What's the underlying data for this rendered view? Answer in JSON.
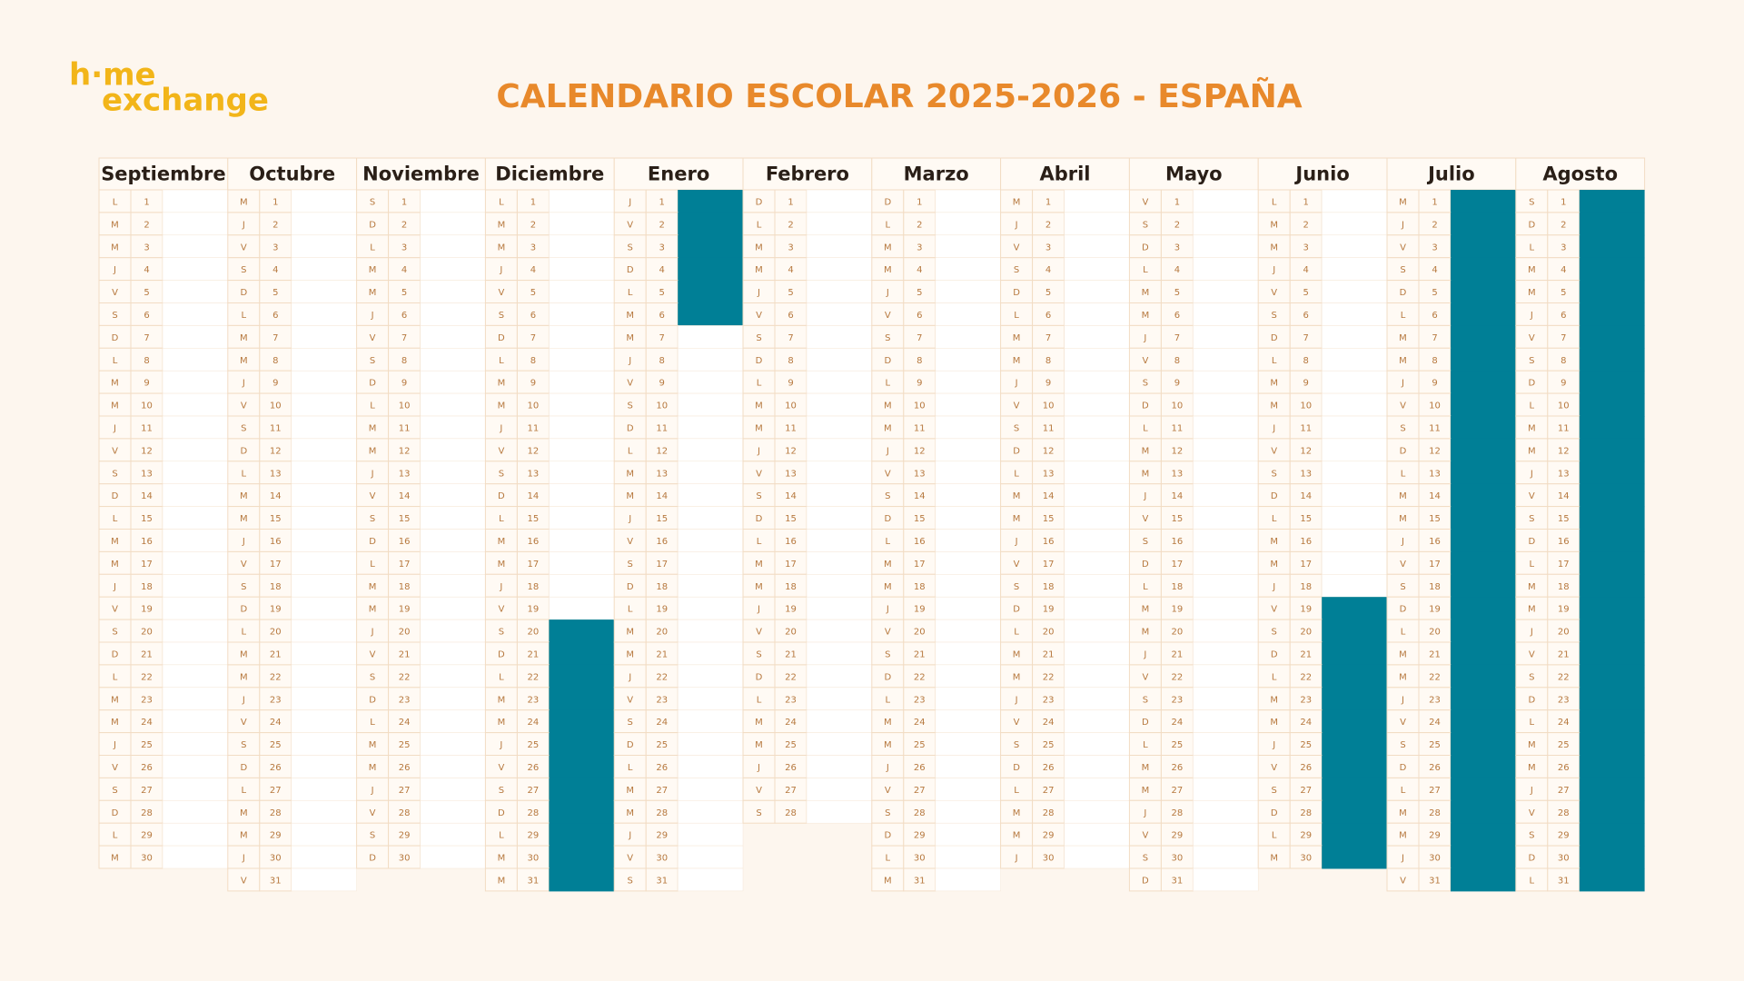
{
  "logo": [
    "h·me",
    "exchange"
  ],
  "title": "CALENDARIO ESCOLAR 2025-2026 - ESPAÑA",
  "months": [
    {
      "name": "Septiembre",
      "weekdays": [
        "L",
        "M",
        "M",
        "J",
        "V",
        "S",
        "D",
        "L",
        "M",
        "M",
        "J",
        "V",
        "S",
        "D",
        "L",
        "M",
        "M",
        "J",
        "V",
        "S",
        "D",
        "L",
        "M",
        "M",
        "J",
        "V",
        "S",
        "D",
        "L",
        "M"
      ],
      "days": [
        1,
        2,
        3,
        4,
        5,
        6,
        7,
        8,
        9,
        10,
        11,
        12,
        13,
        14,
        15,
        16,
        17,
        18,
        19,
        20,
        21,
        22,
        23,
        24,
        25,
        26,
        27,
        28,
        29,
        30
      ]
    },
    {
      "name": "Octubre",
      "weekdays": [
        "M",
        "J",
        "V",
        "S",
        "D",
        "L",
        "M",
        "M",
        "J",
        "V",
        "S",
        "D",
        "L",
        "M",
        "M",
        "J",
        "V",
        "S",
        "D",
        "L",
        "M",
        "M",
        "J",
        "V",
        "S",
        "D",
        "L",
        "M",
        "M",
        "J",
        "V"
      ],
      "days": [
        1,
        2,
        3,
        4,
        5,
        6,
        7,
        8,
        9,
        10,
        11,
        12,
        13,
        14,
        15,
        16,
        17,
        18,
        19,
        20,
        21,
        22,
        23,
        24,
        25,
        26,
        27,
        28,
        29,
        30,
        31
      ]
    },
    {
      "name": "Noviembre",
      "weekdays": [
        "S",
        "D",
        "L",
        "M",
        "M",
        "J",
        "V",
        "S",
        "D",
        "L",
        "M",
        "M",
        "J",
        "V",
        "S",
        "D",
        "L",
        "M",
        "M",
        "J",
        "V",
        "S",
        "D",
        "L",
        "M",
        "M",
        "J",
        "V",
        "S",
        "D"
      ],
      "days": [
        1,
        2,
        3,
        4,
        5,
        6,
        7,
        8,
        9,
        10,
        11,
        12,
        13,
        14,
        15,
        16,
        17,
        18,
        19,
        20,
        21,
        22,
        23,
        24,
        25,
        26,
        27,
        28,
        29,
        30
      ]
    },
    {
      "name": "Diciembre",
      "weekdays": [
        "L",
        "M",
        "M",
        "J",
        "V",
        "S",
        "D",
        "L",
        "M",
        "M",
        "J",
        "V",
        "S",
        "D",
        "L",
        "M",
        "M",
        "J",
        "V",
        "S",
        "D",
        "L",
        "M",
        "M",
        "J",
        "V",
        "S",
        "D",
        "L",
        "M",
        "M"
      ],
      "days": [
        1,
        2,
        3,
        4,
        5,
        6,
        7,
        8,
        9,
        10,
        11,
        12,
        13,
        14,
        15,
        16,
        17,
        18,
        19,
        20,
        21,
        22,
        23,
        24,
        25,
        26,
        27,
        28,
        29,
        30,
        31
      ]
    },
    {
      "name": "Enero",
      "weekdays": [
        "J",
        "V",
        "S",
        "D",
        "L",
        "M",
        "M",
        "J",
        "V",
        "S",
        "D",
        "L",
        "M",
        "M",
        "J",
        "V",
        "S",
        "D",
        "L",
        "M",
        "M",
        "J",
        "V",
        "S",
        "D",
        "L",
        "M",
        "M",
        "J",
        "V",
        "S"
      ],
      "days": [
        1,
        2,
        3,
        4,
        5,
        6,
        7,
        8,
        9,
        10,
        11,
        12,
        13,
        14,
        15,
        16,
        17,
        18,
        19,
        20,
        21,
        22,
        23,
        24,
        25,
        26,
        27,
        28,
        29,
        30,
        31
      ]
    },
    {
      "name": "Febrero",
      "weekdays": [
        "D",
        "L",
        "M",
        "M",
        "J",
        "V",
        "S",
        "D",
        "L",
        "M",
        "M",
        "J",
        "V",
        "S",
        "D",
        "L",
        "M",
        "M",
        "J",
        "V",
        "S",
        "D",
        "L",
        "M",
        "M",
        "J",
        "V",
        "S"
      ],
      "days": [
        1,
        2,
        3,
        4,
        5,
        6,
        7,
        8,
        9,
        10,
        11,
        12,
        13,
        14,
        15,
        16,
        17,
        18,
        19,
        20,
        21,
        22,
        23,
        24,
        25,
        26,
        27,
        28
      ]
    },
    {
      "name": "Marzo",
      "weekdays": [
        "D",
        "L",
        "M",
        "M",
        "J",
        "V",
        "S",
        "D",
        "L",
        "M",
        "M",
        "J",
        "V",
        "S",
        "D",
        "L",
        "M",
        "M",
        "J",
        "V",
        "S",
        "D",
        "L",
        "M",
        "M",
        "J",
        "V",
        "S",
        "D",
        "L",
        "M"
      ],
      "days": [
        1,
        2,
        3,
        4,
        5,
        6,
        7,
        8,
        9,
        10,
        11,
        12,
        13,
        14,
        15,
        16,
        17,
        18,
        19,
        20,
        21,
        22,
        23,
        24,
        25,
        26,
        27,
        28,
        29,
        30,
        31
      ]
    },
    {
      "name": "Abril",
      "weekdays": [
        "M",
        "J",
        "V",
        "S",
        "D",
        "L",
        "M",
        "M",
        "J",
        "V",
        "S",
        "D",
        "L",
        "M",
        "M",
        "J",
        "V",
        "S",
        "D",
        "L",
        "M",
        "M",
        "J",
        "V",
        "S",
        "D",
        "L",
        "M",
        "M",
        "J"
      ],
      "days": [
        1,
        2,
        3,
        4,
        5,
        6,
        7,
        8,
        9,
        10,
        11,
        12,
        13,
        14,
        15,
        16,
        17,
        18,
        19,
        20,
        21,
        22,
        23,
        24,
        25,
        26,
        27,
        28,
        29,
        30
      ]
    },
    {
      "name": "Mayo",
      "weekdays": [
        "V",
        "S",
        "D",
        "L",
        "M",
        "M",
        "J",
        "V",
        "S",
        "D",
        "L",
        "M",
        "M",
        "J",
        "V",
        "S",
        "D",
        "L",
        "M",
        "M",
        "J",
        "V",
        "S",
        "D",
        "L",
        "M",
        "M",
        "J",
        "V",
        "S",
        "D"
      ],
      "days": [
        1,
        2,
        3,
        4,
        5,
        6,
        7,
        8,
        9,
        10,
        11,
        12,
        13,
        14,
        15,
        16,
        17,
        18,
        19,
        20,
        21,
        22,
        23,
        24,
        25,
        26,
        27,
        28,
        29,
        30,
        31
      ]
    },
    {
      "name": "Junio",
      "weekdays": [
        "L",
        "M",
        "M",
        "J",
        "V",
        "S",
        "D",
        "L",
        "M",
        "M",
        "J",
        "V",
        "S",
        "D",
        "L",
        "M",
        "M",
        "J",
        "V",
        "S",
        "D",
        "L",
        "M",
        "M",
        "J",
        "V",
        "S",
        "D",
        "L",
        "M"
      ],
      "days": [
        1,
        2,
        3,
        4,
        5,
        6,
        7,
        8,
        9,
        10,
        11,
        12,
        13,
        14,
        15,
        16,
        17,
        18,
        19,
        20,
        21,
        22,
        23,
        24,
        25,
        26,
        27,
        28,
        29,
        30
      ]
    },
    {
      "name": "Julio",
      "weekdays": [
        "M",
        "J",
        "V",
        "S",
        "D",
        "L",
        "M",
        "M",
        "J",
        "V",
        "S",
        "D",
        "L",
        "M",
        "M",
        "J",
        "V",
        "S",
        "D",
        "L",
        "M",
        "M",
        "J",
        "V",
        "S",
        "D",
        "L",
        "M",
        "M",
        "J",
        "V"
      ],
      "days": [
        1,
        2,
        3,
        4,
        5,
        6,
        7,
        8,
        9,
        10,
        11,
        12,
        13,
        14,
        15,
        16,
        17,
        18,
        19,
        20,
        21,
        22,
        23,
        24,
        25,
        26,
        27,
        28,
        29,
        30,
        31
      ]
    },
    {
      "name": "Agosto",
      "weekdays": [
        "S",
        "D",
        "L",
        "M",
        "M",
        "J",
        "V",
        "S",
        "D",
        "L",
        "M",
        "M",
        "J",
        "V",
        "S",
        "D",
        "L",
        "M",
        "M",
        "J",
        "V",
        "S",
        "D",
        "L",
        "M",
        "M",
        "J",
        "V",
        "S",
        "D",
        "L"
      ],
      "days": [
        1,
        2,
        3,
        4,
        5,
        6,
        7,
        8,
        9,
        10,
        11,
        12,
        13,
        14,
        15,
        16,
        17,
        18,
        19,
        20,
        21,
        22,
        23,
        24,
        25,
        26,
        27,
        28,
        29,
        30,
        31
      ]
    }
  ]
}
